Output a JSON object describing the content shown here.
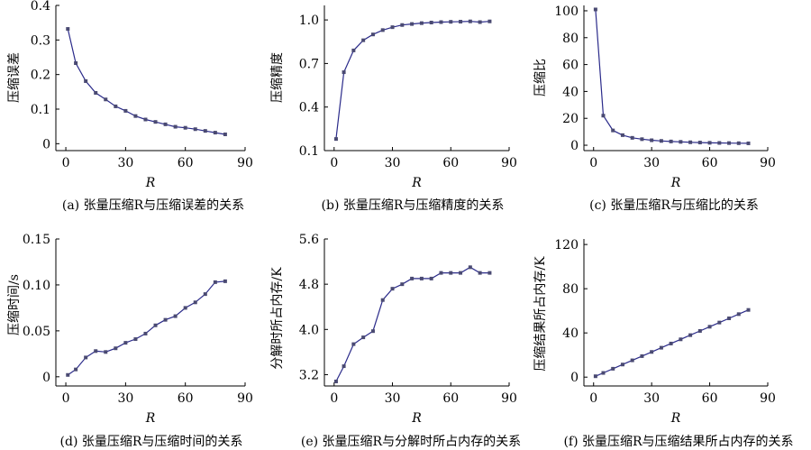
{
  "chart_data": [
    {
      "type": "line",
      "caption": "(a) 张量压缩R与压缩误差的关系",
      "xlabel": "R",
      "ylabel": "压缩误差",
      "xlim": [
        -5,
        90
      ],
      "ylim": [
        -0.02,
        0.4
      ],
      "xticks": [
        0,
        30,
        60,
        90
      ],
      "yticks": [
        0,
        0.1,
        0.2,
        0.3,
        0.4
      ],
      "ytick_labels": [
        "0",
        "0.1",
        "0.2",
        "0.3",
        "0.4"
      ],
      "x": [
        1,
        5,
        10,
        15,
        20,
        25,
        30,
        35,
        40,
        45,
        50,
        55,
        60,
        65,
        70,
        75,
        80
      ],
      "values": [
        0.332,
        0.233,
        0.181,
        0.147,
        0.128,
        0.108,
        0.095,
        0.08,
        0.07,
        0.063,
        0.056,
        0.049,
        0.046,
        0.042,
        0.037,
        0.032,
        0.027
      ]
    },
    {
      "type": "line",
      "caption": "(b) 张量压缩R与压缩精度的关系",
      "xlabel": "R",
      "ylabel": "压缩精度",
      "xlim": [
        -5,
        90
      ],
      "ylim": [
        0.1,
        1.1
      ],
      "xticks": [
        0,
        30,
        60,
        90
      ],
      "yticks": [
        0.1,
        0.4,
        0.7,
        1.0
      ],
      "ytick_labels": [
        "0.1",
        "0.4",
        "0.7",
        "1.0"
      ],
      "x": [
        1,
        5,
        10,
        15,
        20,
        25,
        30,
        35,
        40,
        45,
        50,
        55,
        60,
        65,
        70,
        75,
        80
      ],
      "values": [
        0.18,
        0.64,
        0.79,
        0.86,
        0.9,
        0.93,
        0.95,
        0.965,
        0.972,
        0.978,
        0.982,
        0.985,
        0.987,
        0.988,
        0.99,
        0.985,
        0.99
      ]
    },
    {
      "type": "line",
      "caption": "(c) 张量压缩R与压缩比的关系",
      "xlabel": "R",
      "ylabel": "压缩比",
      "xlim": [
        -5,
        90
      ],
      "ylim": [
        -4,
        104
      ],
      "xticks": [
        0,
        30,
        60,
        90
      ],
      "yticks": [
        0,
        20,
        40,
        60,
        80,
        100
      ],
      "ytick_labels": [
        "0",
        "20",
        "40",
        "60",
        "80",
        "100"
      ],
      "x": [
        1,
        5,
        10,
        15,
        20,
        25,
        30,
        35,
        40,
        45,
        50,
        55,
        60,
        65,
        70,
        75,
        80
      ],
      "values": [
        101,
        22,
        11,
        7.5,
        5.5,
        4.5,
        3.7,
        3.2,
        2.8,
        2.5,
        2.2,
        2.0,
        1.8,
        1.7,
        1.6,
        1.5,
        1.4
      ]
    },
    {
      "type": "line",
      "caption": "(d) 张量压缩R与压缩时间的关系",
      "xlabel": "R",
      "ylabel": "压缩时间/s",
      "xlim": [
        -5,
        90
      ],
      "ylim": [
        -0.01,
        0.15
      ],
      "xticks": [
        0,
        30,
        60,
        90
      ],
      "yticks": [
        0,
        0.05,
        0.1,
        0.15
      ],
      "ytick_labels": [
        "0",
        "0.05",
        "0.10",
        "0.15"
      ],
      "x": [
        1,
        5,
        10,
        15,
        20,
        25,
        30,
        35,
        40,
        45,
        50,
        55,
        60,
        65,
        70,
        75,
        80
      ],
      "values": [
        0.002,
        0.008,
        0.021,
        0.028,
        0.027,
        0.031,
        0.037,
        0.041,
        0.047,
        0.056,
        0.062,
        0.066,
        0.075,
        0.081,
        0.09,
        0.103,
        0.104
      ]
    },
    {
      "type": "line",
      "caption": "(e) 张量压缩R与分解时所占内存的关系",
      "xlabel": "R",
      "ylabel": "分解时所占内存/K",
      "xlim": [
        -5,
        90
      ],
      "ylim": [
        3.0,
        5.6
      ],
      "xticks": [
        0,
        30,
        60,
        90
      ],
      "yticks": [
        3.2,
        4.0,
        4.8,
        5.6
      ],
      "ytick_labels": [
        "3.2",
        "4.0",
        "4.8",
        "5.6"
      ],
      "x": [
        1,
        5,
        10,
        15,
        20,
        25,
        30,
        35,
        40,
        45,
        50,
        55,
        60,
        65,
        70,
        75,
        80
      ],
      "values": [
        3.08,
        3.35,
        3.74,
        3.86,
        3.97,
        4.52,
        4.72,
        4.8,
        4.9,
        4.9,
        4.9,
        5.0,
        5.0,
        5.0,
        5.1,
        5.0,
        5.0
      ]
    },
    {
      "type": "line",
      "caption": "(f) 张量压缩R与压缩结果所占内存的关系",
      "xlabel": "R",
      "ylabel": "压缩结果所占内存/K",
      "xlim": [
        -5,
        90
      ],
      "ylim": [
        -8,
        125
      ],
      "xticks": [
        0,
        30,
        60,
        90
      ],
      "yticks": [
        0,
        40,
        80,
        120
      ],
      "ytick_labels": [
        "0",
        "40",
        "80",
        "120"
      ],
      "x": [
        1,
        5,
        10,
        15,
        20,
        25,
        30,
        35,
        40,
        45,
        50,
        55,
        60,
        65,
        70,
        75,
        80
      ],
      "values": [
        0.8,
        3.8,
        7.6,
        11.4,
        15.2,
        19.0,
        22.8,
        26.6,
        30.4,
        34.2,
        38.0,
        41.8,
        45.6,
        49.4,
        53.2,
        57.0,
        60.8
      ]
    }
  ],
  "style": {
    "line_color": "#2a2a8a",
    "marker_color": "#4a4a72",
    "axis_color": "#000000"
  }
}
